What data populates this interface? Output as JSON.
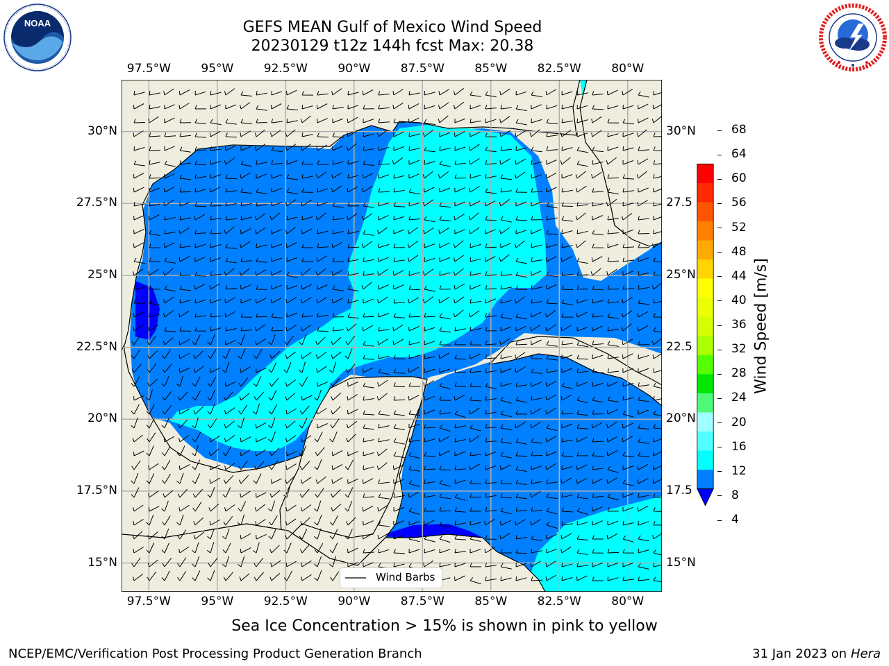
{
  "title": {
    "line1": "GEFS MEAN Gulf of Mexico Wind Speed",
    "line2": "20230129 t12z 144h fcst   Max: 20.38"
  },
  "logos": {
    "left": {
      "name": "noaa-logo",
      "text": "NOAA",
      "ring_text": "NATIONAL OCEANIC AND ATMOSPHERIC ADMINISTRATION · U.S. DEPARTMENT OF COMMERCE"
    },
    "right": {
      "name": "nws-logo",
      "ring_text": "NATIONAL WEATHER SERVICE"
    }
  },
  "map": {
    "lon_range": [
      -98.5,
      -78.75
    ],
    "lat_range": [
      14.0,
      31.8
    ],
    "lon_ticks": [
      "97.5°W",
      "95°W",
      "92.5°W",
      "90°W",
      "87.5°W",
      "85°W",
      "82.5°W",
      "80°W"
    ],
    "lon_values": [
      -97.5,
      -95,
      -92.5,
      -90,
      -87.5,
      -85,
      -82.5,
      -80
    ],
    "lat_ticks_left": [
      "30°N",
      "27.5°N",
      "25°N",
      "22.5°N",
      "20°N",
      "17.5°N",
      "15°N"
    ],
    "lat_ticks_right": [
      "30°N",
      "27.5",
      "25°N",
      "22.5",
      "20°N",
      "17.5",
      "15°N"
    ],
    "lat_values": [
      30,
      27.5,
      25,
      22.5,
      20,
      17.5,
      15
    ],
    "land_color": "#efedde",
    "grid": true,
    "legend": "Wind Barbs"
  },
  "colorbar": {
    "label": "Wind Speed [m/s]",
    "ticks": [
      "68",
      "64",
      "60",
      "56",
      "52",
      "48",
      "44",
      "40",
      "36",
      "32",
      "28",
      "24",
      "20",
      "16",
      "12",
      "8",
      "4"
    ],
    "colors": [
      "#ff0000",
      "#ff2a00",
      "#ff5500",
      "#ff8000",
      "#ffaa00",
      "#ffd400",
      "#ffff00",
      "#eaff00",
      "#d4ff00",
      "#aaff00",
      "#55ff00",
      "#00e800",
      "#50f878",
      "#a0ffff",
      "#50ffff",
      "#00ffff",
      "#0080ff"
    ],
    "under_color": "#0000ff"
  },
  "subtitle": "Sea Ice Concentration > 15% is shown in pink to yellow",
  "footer": {
    "left": "NCEP/EMC/Verification Post Processing Product Generation Branch",
    "right_text": "31 Jan 2023 on ",
    "right_italic": "Hera"
  }
}
